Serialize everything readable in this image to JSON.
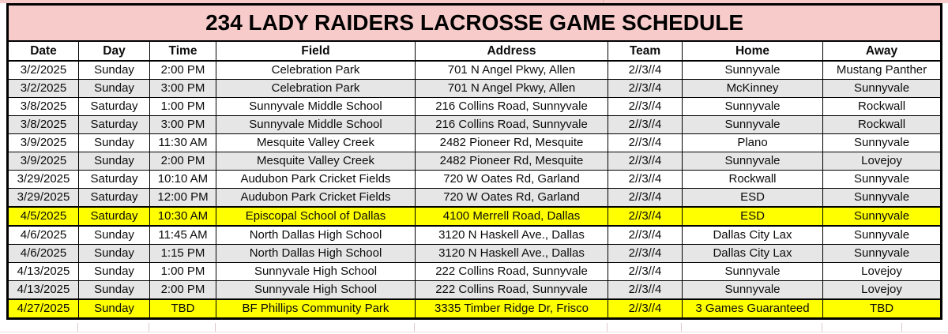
{
  "title": "234 LADY RAIDERS LACROSSE GAME SCHEDULE",
  "colors": {
    "title_background": "#F8CBCB",
    "alt_row_background": "#E7E6E6",
    "highlight_background": "#FFFF00",
    "border": "#000000",
    "text": "#000000"
  },
  "table": {
    "columns": [
      "Date",
      "Day",
      "Time",
      "Field",
      "Address",
      "Team",
      "Home",
      "Away"
    ],
    "rows": [
      {
        "bg": "white",
        "cells": [
          "3/2/2025",
          "Sunday",
          "2:00 PM",
          "Celebration Park",
          "701 N Angel Pkwy, Allen",
          "2//3//4",
          "Sunnyvale",
          "Mustang Panther"
        ]
      },
      {
        "bg": "gray",
        "cells": [
          "3/2/2025",
          "Sunday",
          "3:00 PM",
          "Celebration Park",
          "701 N Angel Pkwy, Allen",
          "2//3//4",
          "McKinney",
          "Sunnyvale"
        ]
      },
      {
        "bg": "white",
        "cells": [
          "3/8/2025",
          "Saturday",
          "1:00 PM",
          "Sunnyvale Middle School",
          "216 Collins Road, Sunnyvale",
          "2//3//4",
          "Sunnyvale",
          "Rockwall"
        ]
      },
      {
        "bg": "gray",
        "cells": [
          "3/8/2025",
          "Saturday",
          "3:00 PM",
          "Sunnyvale Middle School",
          "216 Collins Road, Sunnyvale",
          "2//3//4",
          "Sunnyvale",
          "Rockwall"
        ]
      },
      {
        "bg": "white",
        "cells": [
          "3/9/2025",
          "Sunday",
          "11:30 AM",
          "Mesquite Valley Creek",
          "2482 Pioneer Rd, Mesquite",
          "2//3//4",
          "Plano",
          "Sunnyvale"
        ]
      },
      {
        "bg": "gray",
        "cells": [
          "3/9/2025",
          "Sunday",
          "2:00 PM",
          "Mesquite Valley Creek",
          "2482 Pioneer Rd, Mesquite",
          "2//3//4",
          "Sunnyvale",
          "Lovejoy"
        ]
      },
      {
        "bg": "white",
        "cells": [
          "3/29/2025",
          "Saturday",
          "10:10 AM",
          "Audubon Park Cricket Fields",
          "720 W Oates Rd, Garland",
          "2//3//4",
          "Rockwall",
          "Sunnyvale"
        ]
      },
      {
        "bg": "gray",
        "cells": [
          "3/29/2025",
          "Saturday",
          "12:00 PM",
          "Audubon Park Cricket Fields",
          "720 W Oates Rd, Garland",
          "2//3//4",
          "ESD",
          "Sunnyvale"
        ]
      },
      {
        "bg": "yellow",
        "cells": [
          "4/5/2025",
          "Saturday",
          "10:30 AM",
          "Episcopal School of Dallas",
          "4100 Merrell Road, Dallas",
          "2//3//4",
          "ESD",
          "Sunnyvale"
        ]
      },
      {
        "bg": "white",
        "cells": [
          "4/6/2025",
          "Sunday",
          "11:45 AM",
          "North Dallas High School",
          "3120 N Haskell Ave., Dallas",
          "2//3//4",
          "Dallas City Lax",
          "Sunnyvale"
        ]
      },
      {
        "bg": "gray",
        "cells": [
          "4/6/2025",
          "Sunday",
          "1:15 PM",
          "North Dallas High School",
          "3120 N Haskell Ave., Dallas",
          "2//3//4",
          "Dallas City Lax",
          "Sunnyvale"
        ]
      },
      {
        "bg": "white",
        "cells": [
          "4/13/2025",
          "Sunday",
          "1:00 PM",
          "Sunnyvale High School",
          "222 Collins Road, Sunnyvale",
          "2//3//4",
          "Sunnyvale",
          "Lovejoy"
        ]
      },
      {
        "bg": "gray",
        "cells": [
          "4/13/2025",
          "Sunday",
          "2:00 PM",
          "Sunnyvale High School",
          "222 Collins Road, Sunnyvale",
          "2//3//4",
          "Sunnyvale",
          "Lovejoy"
        ]
      },
      {
        "bg": "yellow",
        "cells": [
          "4/27/2025",
          "Sunday",
          "TBD",
          "BF Phillips Community Park",
          "3335 Timber Ridge Dr, Frisco",
          "2//3//4",
          "3 Games Guaranteed",
          "TBD"
        ]
      }
    ]
  }
}
